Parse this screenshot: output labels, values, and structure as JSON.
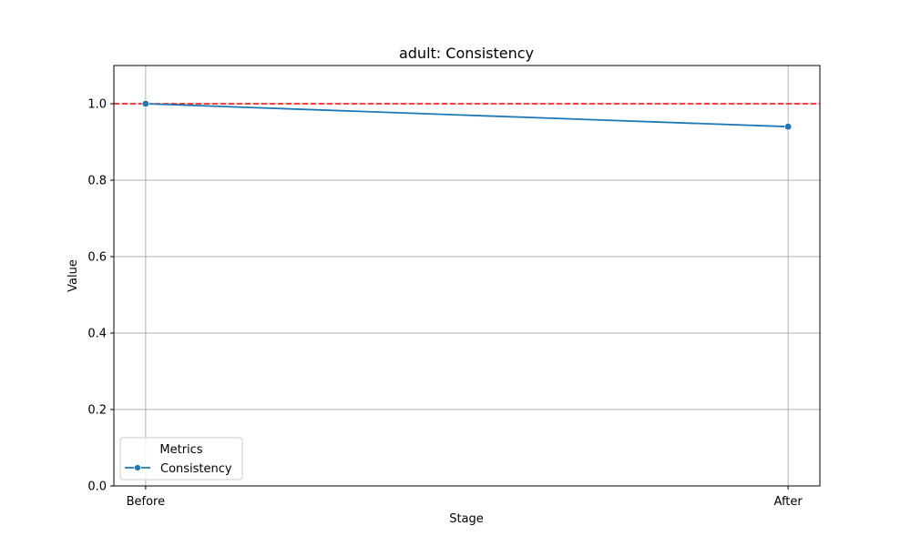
{
  "chart_data": {
    "type": "line",
    "title": "adult: Consistency",
    "xlabel": "Stage",
    "ylabel": "Value",
    "categories": [
      "Before",
      "After"
    ],
    "series": [
      {
        "name": "Consistency",
        "values": [
          1.0,
          0.94
        ],
        "color": "#1f77b4",
        "marker": "circle"
      }
    ],
    "ylim": [
      0,
      1.1
    ],
    "yticks": [
      "0.0",
      "0.2",
      "0.4",
      "0.6",
      "0.8",
      "1.0"
    ],
    "grid": true,
    "reference_line": {
      "y": 1.0,
      "color": "#ff0000",
      "style": "dashed"
    },
    "legend": {
      "title": "Metrics",
      "position": "lower-left"
    }
  }
}
